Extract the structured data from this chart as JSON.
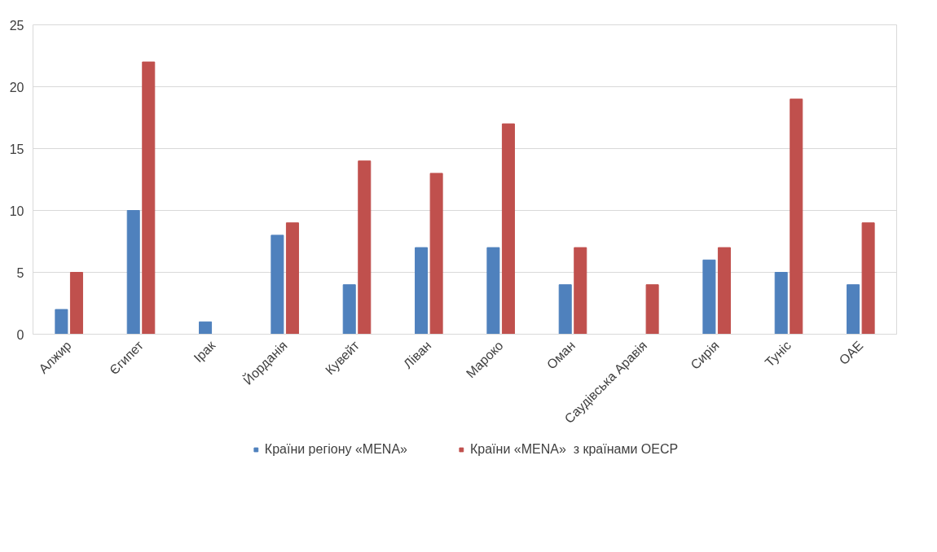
{
  "chart_data": {
    "type": "bar",
    "categories": [
      "Алжир",
      "Єгипет",
      "Ірак",
      "Йорданія",
      "Кувейт",
      "Ліван",
      "Мароко",
      "Оман",
      "Саудівська Аравія",
      "Сирія",
      "Туніс",
      "ОАЕ"
    ],
    "series": [
      {
        "name": "Країни регіону «MENA»",
        "color": "#4f81bd",
        "values": [
          2,
          10,
          1,
          8,
          4,
          7,
          7,
          4,
          0,
          6,
          5,
          4
        ]
      },
      {
        "name": "Країни «MENA»  з країнами ОЕСР",
        "color": "#c0504d",
        "values": [
          5,
          22,
          0,
          9,
          14,
          13,
          17,
          7,
          4,
          7,
          19,
          9
        ]
      }
    ],
    "ylim": [
      0,
      25
    ],
    "yticks": [
      0,
      5,
      10,
      15,
      20,
      25
    ],
    "grid": "y",
    "legend": "bottom"
  }
}
